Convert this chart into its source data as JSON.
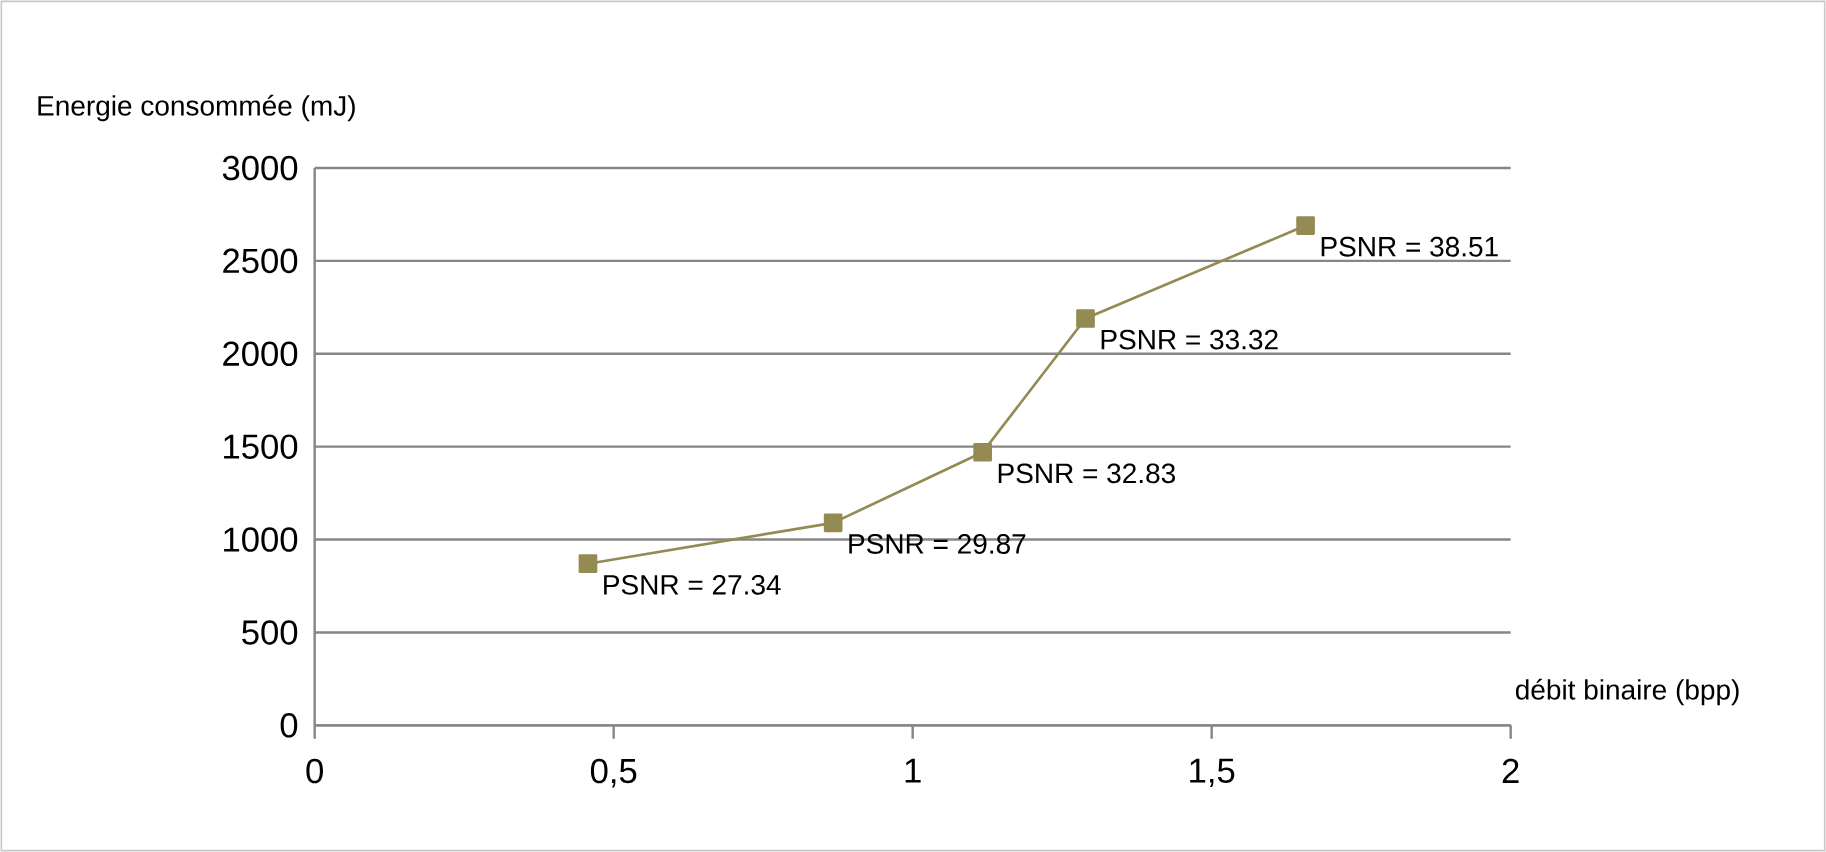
{
  "chart_data": {
    "type": "line",
    "xlabel": "débit binaire (bpp)",
    "ylabel": "Energie consommée (mJ)",
    "x": [
      0.457,
      0.867,
      1.117,
      1.289,
      1.657
    ],
    "series": [
      {
        "color": "#948a54",
        "values": [
          870,
          1090,
          1470,
          2190,
          2690
        ]
      }
    ],
    "marker": "square",
    "line_style": "solid",
    "grid": "y",
    "xlim": [
      0,
      2
    ],
    "xticks": [
      0,
      {
        "value": 0.5,
        "label": "0,5"
      },
      1,
      {
        "value": 1.5,
        "label": "1,5"
      },
      2
    ],
    "ylim": [
      0,
      3000
    ],
    "yticks": [
      0,
      500,
      1000,
      1500,
      2000,
      2500,
      3000
    ],
    "annotations": [
      {
        "text": "PSNR = 27.34",
        "x": 0.457,
        "y": 870
      },
      {
        "text": "PSNR = 29.87",
        "x": 0.867,
        "y": 1090
      },
      {
        "text": "PSNR = 32.83",
        "x": 1.117,
        "y": 1470
      },
      {
        "text": "PSNR = 33.32",
        "x": 1.289,
        "y": 2190
      },
      {
        "text": "PSNR = 38.51",
        "x": 1.657,
        "y": 2690
      }
    ]
  }
}
